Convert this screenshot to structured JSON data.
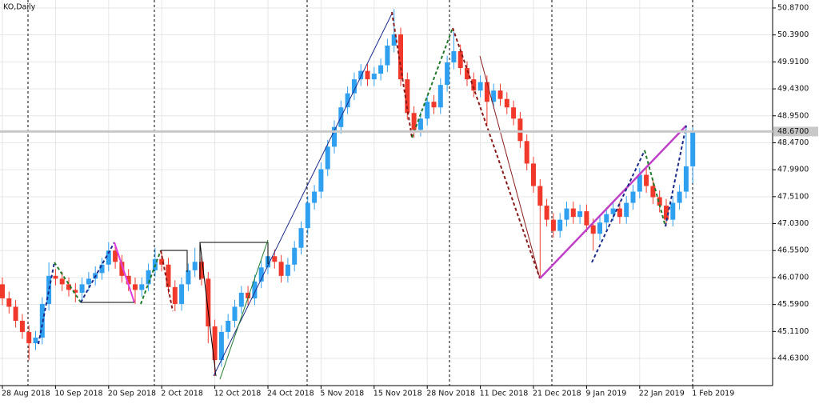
{
  "chart_data": {
    "type": "candlestick",
    "title": "KO,Daily",
    "categories": [
      "28 Aug 2018",
      null,
      null,
      null,
      null,
      null,
      null,
      null,
      "10 Sep 2018",
      null,
      null,
      null,
      null,
      null,
      null,
      null,
      "20 Sep 2018",
      null,
      null,
      null,
      null,
      null,
      null,
      null,
      "2 Oct 2018",
      null,
      null,
      null,
      null,
      null,
      null,
      null,
      "12 Oct 2018",
      null,
      null,
      null,
      null,
      null,
      null,
      null,
      "24 Oct 2018",
      null,
      null,
      null,
      null,
      null,
      null,
      null,
      "5 Nov 2018",
      null,
      null,
      null,
      null,
      null,
      null,
      null,
      "15 Nov 2018",
      null,
      null,
      null,
      null,
      null,
      null,
      null,
      "28 Nov 2018",
      null,
      null,
      null,
      null,
      null,
      null,
      null,
      "11 Dec 2018",
      null,
      null,
      null,
      null,
      null,
      null,
      null,
      "21 Dec 2018",
      null,
      null,
      null,
      null,
      null,
      null,
      null,
      "9 Jan 2019",
      null,
      null,
      null,
      null,
      null,
      null,
      null,
      "22 Jan 2019",
      null,
      null,
      null,
      null,
      null,
      null,
      null,
      "1 Feb 2019"
    ],
    "open": [
      45.95,
      45.7,
      45.55,
      45.3,
      45.1,
      44.9,
      45.0,
      45.6,
      46.1,
      46.05,
      45.95,
      45.85,
      45.8,
      45.95,
      46.05,
      46.15,
      46.3,
      46.55,
      46.35,
      46.1,
      45.95,
      45.85,
      45.95,
      46.2,
      46.4,
      46.3,
      45.9,
      45.6,
      45.95,
      46.2,
      46.35,
      46.05,
      45.2,
      44.6,
      45.1,
      45.3,
      45.55,
      45.8,
      45.7,
      46.0,
      46.25,
      46.45,
      46.35,
      46.1,
      46.3,
      46.6,
      46.95,
      47.4,
      47.6,
      48.0,
      48.4,
      48.75,
      49.1,
      49.35,
      49.6,
      49.75,
      49.6,
      49.7,
      49.85,
      50.2,
      50.4,
      49.6,
      49.0,
      48.7,
      48.9,
      49.2,
      49.1,
      49.5,
      49.9,
      50.1,
      49.8,
      49.6,
      49.4,
      49.55,
      49.2,
      49.4,
      49.25,
      49.1,
      48.9,
      48.5,
      48.1,
      47.7,
      47.35,
      47.1,
      46.9,
      47.1,
      47.3,
      47.15,
      47.25,
      47.0,
      46.85,
      47.05,
      47.2,
      47.3,
      47.15,
      47.4,
      47.6,
      47.9,
      47.7,
      47.5,
      47.35,
      47.1,
      47.4,
      47.6,
      48.05
    ],
    "high": [
      46.07,
      45.82,
      45.67,
      45.42,
      45.22,
      45.12,
      45.72,
      46.34,
      46.22,
      46.17,
      46.07,
      45.97,
      46.07,
      46.17,
      46.27,
      46.42,
      46.7,
      46.67,
      46.47,
      46.22,
      46.07,
      46.07,
      46.32,
      46.6,
      46.52,
      46.42,
      46.02,
      46.07,
      46.32,
      46.6,
      46.47,
      46.17,
      45.32,
      45.22,
      45.42,
      45.67,
      45.92,
      45.92,
      46.12,
      46.37,
      46.7,
      46.57,
      46.47,
      46.42,
      46.72,
      47.07,
      47.52,
      47.72,
      48.12,
      48.52,
      48.87,
      49.22,
      49.47,
      49.72,
      49.87,
      49.87,
      49.82,
      49.97,
      50.32,
      50.85,
      50.52,
      49.72,
      49.12,
      49.02,
      49.32,
      49.32,
      49.62,
      50.02,
      50.45,
      50.22,
      49.92,
      49.72,
      49.67,
      49.67,
      49.52,
      49.52,
      49.37,
      49.22,
      49.02,
      48.62,
      48.22,
      47.82,
      47.47,
      47.22,
      47.22,
      47.42,
      47.42,
      47.37,
      47.37,
      47.12,
      47.17,
      47.32,
      47.42,
      47.42,
      47.52,
      47.72,
      48.02,
      48.02,
      47.82,
      47.62,
      47.47,
      47.52,
      47.72,
      48.75,
      48.75
    ],
    "low": [
      45.58,
      45.43,
      45.18,
      44.98,
      44.6,
      44.78,
      44.88,
      45.48,
      45.93,
      45.83,
      45.73,
      45.63,
      45.68,
      45.83,
      45.93,
      46.03,
      46.18,
      46.23,
      45.98,
      45.83,
      45.6,
      45.73,
      45.83,
      46.08,
      46.18,
      45.78,
      45.47,
      45.48,
      45.83,
      46.08,
      45.93,
      44.9,
      44.32,
      44.48,
      44.98,
      45.18,
      45.43,
      45.58,
      45.58,
      45.88,
      46.13,
      46.23,
      45.98,
      45.98,
      46.18,
      46.48,
      46.83,
      47.28,
      47.48,
      47.88,
      48.28,
      48.63,
      48.98,
      49.23,
      49.48,
      49.48,
      49.48,
      49.58,
      49.73,
      50.08,
      49.48,
      48.88,
      48.56,
      48.58,
      48.78,
      48.98,
      48.98,
      49.38,
      49.78,
      49.68,
      49.48,
      49.28,
      49.28,
      48.8,
      49.08,
      49.13,
      48.98,
      48.78,
      48.38,
      47.98,
      47.58,
      46.07,
      46.98,
      46.78,
      46.78,
      46.98,
      47.03,
      47.03,
      46.88,
      46.55,
      46.73,
      46.93,
      47.08,
      47.03,
      47.03,
      47.28,
      47.48,
      47.58,
      47.38,
      47.23,
      46.98,
      46.98,
      47.28,
      47.48,
      47.75
    ],
    "close": [
      45.7,
      45.55,
      45.3,
      45.1,
      44.9,
      45.0,
      45.6,
      46.1,
      46.05,
      45.95,
      45.85,
      45.8,
      45.95,
      46.05,
      46.15,
      46.3,
      46.55,
      46.35,
      46.1,
      45.95,
      45.85,
      45.95,
      46.2,
      46.4,
      46.3,
      45.9,
      45.6,
      45.95,
      46.2,
      46.35,
      46.05,
      45.2,
      44.6,
      45.1,
      45.3,
      45.55,
      45.8,
      45.7,
      46.0,
      46.25,
      46.45,
      46.35,
      46.1,
      46.3,
      46.6,
      46.95,
      47.4,
      47.6,
      48.0,
      48.4,
      48.75,
      49.1,
      49.35,
      49.6,
      49.75,
      49.6,
      49.7,
      49.85,
      50.2,
      50.4,
      49.6,
      49.0,
      48.7,
      48.9,
      49.2,
      49.1,
      49.5,
      49.9,
      50.1,
      49.8,
      49.6,
      49.4,
      49.55,
      49.2,
      49.4,
      49.25,
      49.1,
      48.9,
      48.5,
      48.1,
      47.7,
      47.35,
      47.1,
      46.9,
      47.1,
      47.3,
      47.15,
      47.25,
      47.0,
      46.85,
      47.05,
      47.2,
      47.3,
      47.15,
      47.4,
      47.6,
      47.9,
      47.7,
      47.5,
      47.35,
      47.1,
      47.4,
      47.6,
      48.05,
      48.67
    ],
    "up_color": "#2f9ff0",
    "down_color": "#f0392b",
    "ylim": [
      44.146,
      51.012
    ],
    "yticks": [
      {
        "value": 50.87,
        "label": "50.8700"
      },
      {
        "value": 50.39,
        "label": "50.3900"
      },
      {
        "value": 49.91,
        "label": "49.9100"
      },
      {
        "value": 49.43,
        "label": "49.4300"
      },
      {
        "value": 48.95,
        "label": "48.9500"
      },
      {
        "value": 48.47,
        "label": "48.4700"
      },
      {
        "value": 47.99,
        "label": "47.9900"
      },
      {
        "value": 47.51,
        "label": "47.5100"
      },
      {
        "value": 47.03,
        "label": "47.0300"
      },
      {
        "value": 46.55,
        "label": "46.5500"
      },
      {
        "value": 46.07,
        "label": "46.0700"
      },
      {
        "value": 45.59,
        "label": "45.5900"
      },
      {
        "value": 45.11,
        "label": "45.1100"
      },
      {
        "value": 44.63,
        "label": "44.6300"
      }
    ],
    "price_line": {
      "value": 48.67,
      "label": "48.6700"
    },
    "grid": true
  }
}
